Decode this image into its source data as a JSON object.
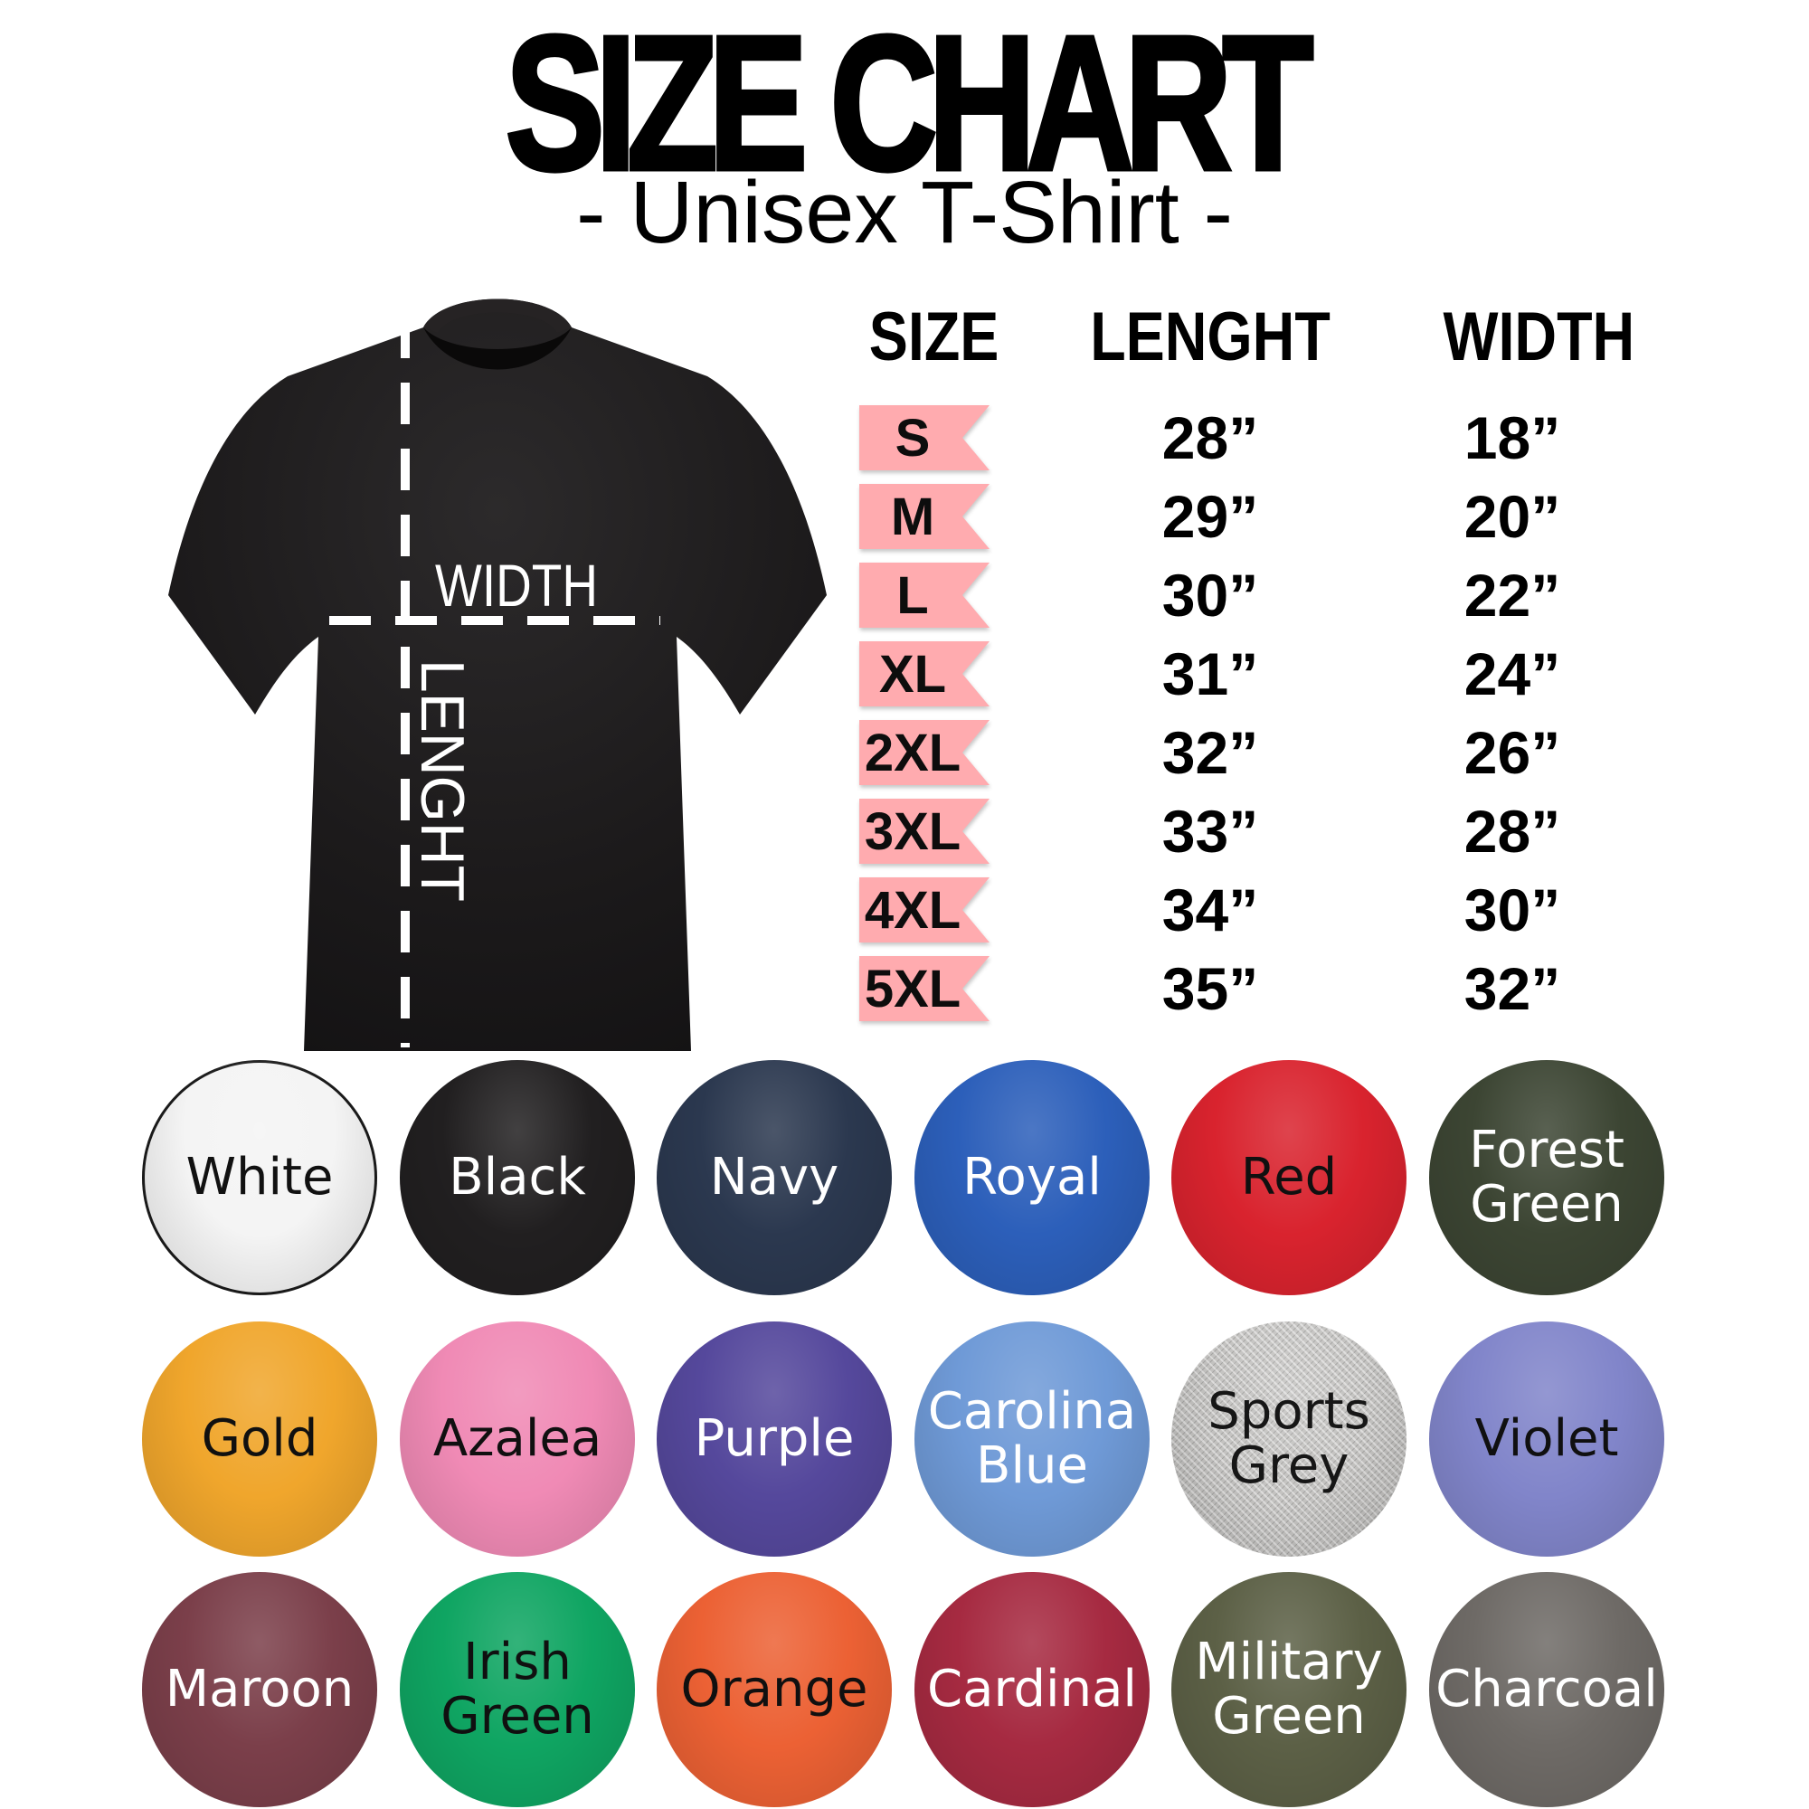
{
  "header": {
    "title": "SIZE CHART",
    "subtitle": "- Unisex T-Shirt -"
  },
  "diagram": {
    "width_label": "WIDTH",
    "length_label": "LENGHT",
    "shirt_color": "#1b191a",
    "line_color": "#ffffff"
  },
  "chart_data": {
    "type": "table",
    "title": "SIZE CHART",
    "subtitle": "- Unisex T-Shirt -",
    "columns": [
      "SIZE",
      "LENGHT",
      "WIDTH"
    ],
    "rows": [
      [
        "S",
        "28”",
        "18”"
      ],
      [
        "M",
        "29”",
        "20”"
      ],
      [
        "L",
        "30”",
        "22”"
      ],
      [
        "XL",
        "31”",
        "24”"
      ],
      [
        "2XL",
        "32”",
        "26”"
      ],
      [
        "3XL",
        "33”",
        "28”"
      ],
      [
        "4XL",
        "34”",
        "30”"
      ],
      [
        "5XL",
        "35”",
        "32”"
      ]
    ],
    "row_tag_color": "#ffabaf",
    "legend_position": "bottom",
    "color_options": [
      "White",
      "Black",
      "Navy",
      "Royal",
      "Red",
      "Forest Green",
      "Gold",
      "Azalea",
      "Purple",
      "Carolina Blue",
      "Sports Grey",
      "Violet",
      "Maroon",
      "Irish Green",
      "Orange",
      "Cardinal",
      "Military Green",
      "Charcoal"
    ]
  },
  "swatches": [
    {
      "name": "White",
      "display": "White",
      "hex": "#f4f4f4",
      "text": "#111111",
      "border": "#1b1b1b"
    },
    {
      "name": "Black",
      "display": "Black",
      "hex": "#211f20",
      "text": "#ffffff"
    },
    {
      "name": "Navy",
      "display": "Navy",
      "hex": "#2b384f",
      "text": "#ffffff"
    },
    {
      "name": "Royal",
      "display": "Royal",
      "hex": "#2c5fba",
      "text": "#ffffff"
    },
    {
      "name": "Red",
      "display": "Red",
      "hex": "#d9232e",
      "text": "#101010"
    },
    {
      "name": "Forest Green",
      "display": "Forest\nGreen",
      "hex": "#3c4533",
      "text": "#ffffff"
    },
    {
      "name": "Gold",
      "display": "Gold",
      "hex": "#f0a62c",
      "text": "#101010"
    },
    {
      "name": "Azalea",
      "display": "Azalea",
      "hex": "#f08ab5",
      "text": "#101010"
    },
    {
      "name": "Purple",
      "display": "Purple",
      "hex": "#55489c",
      "text": "#ffffff"
    },
    {
      "name": "Carolina Blue",
      "display": "Carolina\nBlue",
      "hex": "#6f9ad7",
      "text": "#ffffff"
    },
    {
      "name": "Sports Grey",
      "display": "Sports\nGrey",
      "hex": "#c4c3c1",
      "text": "#161616",
      "heather": true
    },
    {
      "name": "Violet",
      "display": "Violet",
      "hex": "#8185ca",
      "text": "#101010"
    },
    {
      "name": "Maroon",
      "display": "Maroon",
      "hex": "#7b3f4a",
      "text": "#ffffff"
    },
    {
      "name": "Irish Green",
      "display": "Irish\nGreen",
      "hex": "#0fa562",
      "text": "#101010"
    },
    {
      "name": "Orange",
      "display": "Orange",
      "hex": "#ec6134",
      "text": "#101010"
    },
    {
      "name": "Cardinal",
      "display": "Cardinal",
      "hex": "#a62a41",
      "text": "#ffffff"
    },
    {
      "name": "Military Green",
      "display": "Military\nGreen",
      "hex": "#5c6046",
      "text": "#ffffff"
    },
    {
      "name": "Charcoal",
      "display": "Charcoal",
      "hex": "#6e6a66",
      "text": "#ffffff"
    }
  ]
}
